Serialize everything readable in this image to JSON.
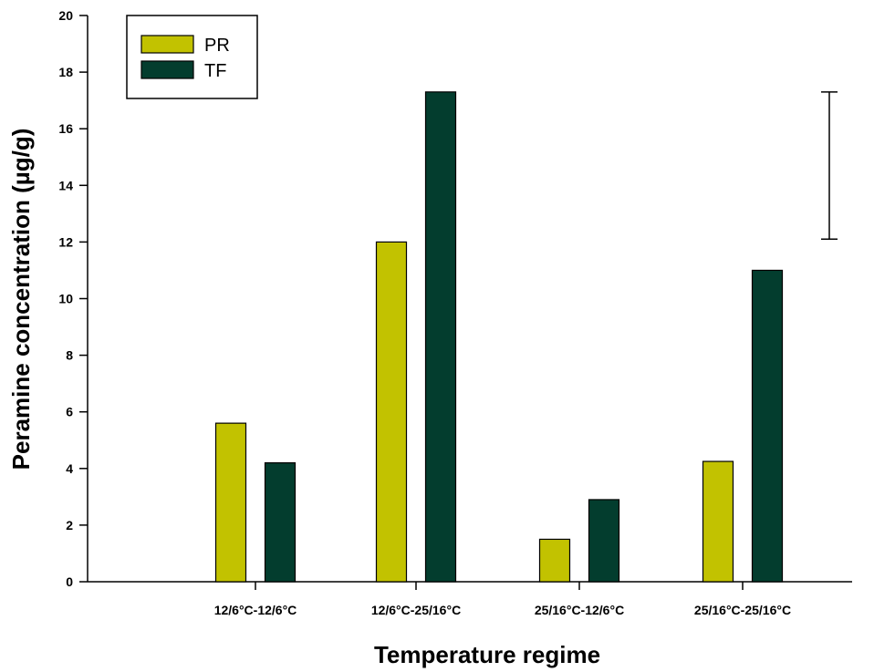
{
  "chart_data": {
    "type": "bar",
    "title": "",
    "xlabel": "Temperature regime",
    "ylabel": "Peramine concentration (µg/g)",
    "ylim": [
      0,
      20
    ],
    "yticks": [
      0,
      2,
      4,
      6,
      8,
      10,
      12,
      14,
      16,
      18,
      20
    ],
    "categories": [
      "12/6°C-12/6°C",
      "12/6°C-25/16°C",
      "25/16°C-12/6°C",
      "25/16°C-25/16°C"
    ],
    "series": [
      {
        "name": "PR",
        "color": "#c2c200",
        "values": [
          5.6,
          12.0,
          1.5,
          4.25
        ]
      },
      {
        "name": "TF",
        "color": "#033d2e",
        "values": [
          4.2,
          17.3,
          2.9,
          11.0
        ]
      }
    ],
    "error_bar": {
      "low": 12.1,
      "high": 17.3
    },
    "legend": {
      "position": "top-left"
    },
    "grid": false
  }
}
